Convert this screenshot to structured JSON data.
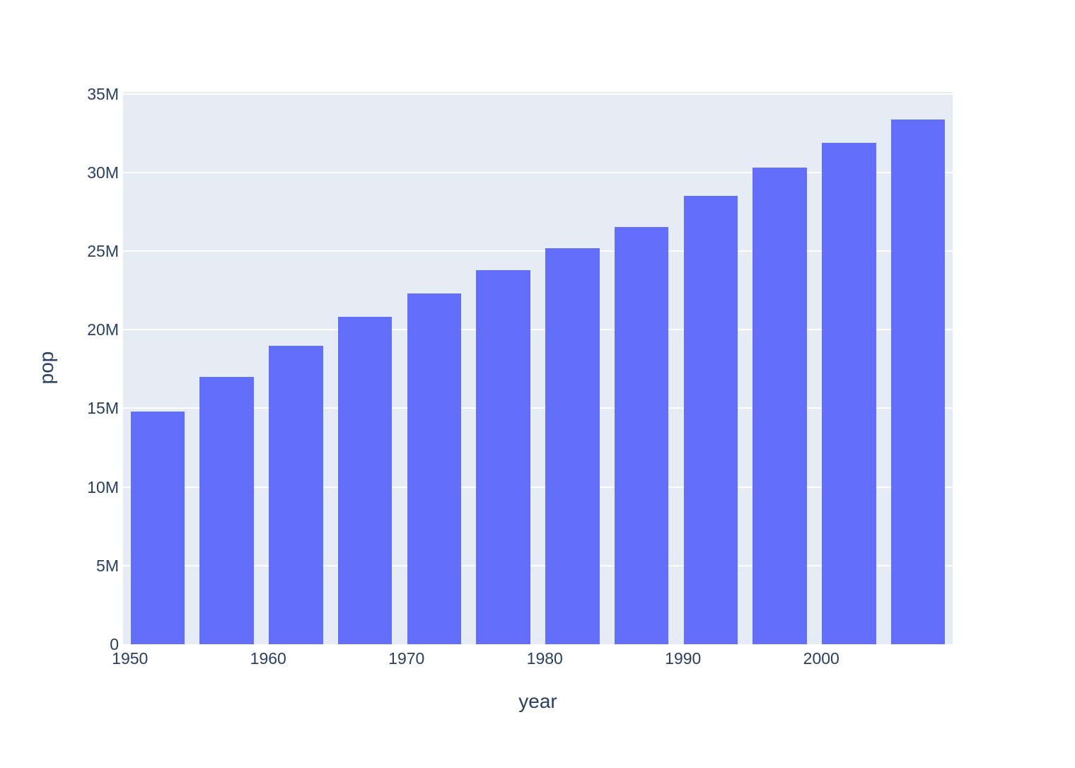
{
  "chart_data": {
    "type": "bar",
    "title": "",
    "xlabel": "year",
    "ylabel": "pop",
    "x": [
      1952,
      1957,
      1962,
      1967,
      1972,
      1977,
      1982,
      1987,
      1992,
      1997,
      2002,
      2007
    ],
    "values": [
      14785584,
      17010154,
      18985849,
      20819767,
      22284500,
      23796400,
      25201900,
      26549700,
      28523502,
      30305843,
      31902268,
      33390141
    ],
    "series_name": "pop",
    "xlim": [
      1949.5,
      2009.5
    ],
    "ylim": [
      0,
      35120000
    ],
    "bar_width_years": 3.93,
    "x_ticks": [
      {
        "value": 1950,
        "label": "1950"
      },
      {
        "value": 1960,
        "label": "1960"
      },
      {
        "value": 1970,
        "label": "1970"
      },
      {
        "value": 1980,
        "label": "1980"
      },
      {
        "value": 1990,
        "label": "1990"
      },
      {
        "value": 2000,
        "label": "2000"
      }
    ],
    "y_ticks": [
      {
        "value": 0,
        "label": "0"
      },
      {
        "value": 5000000,
        "label": "5M"
      },
      {
        "value": 10000000,
        "label": "10M"
      },
      {
        "value": 15000000,
        "label": "15M"
      },
      {
        "value": 20000000,
        "label": "20M"
      },
      {
        "value": 25000000,
        "label": "25M"
      },
      {
        "value": 30000000,
        "label": "30M"
      },
      {
        "value": 35000000,
        "label": "35M"
      }
    ],
    "grid": true,
    "legend": "none",
    "colors": {
      "bar": "#636EFA",
      "plot_background": "#E5ECF6",
      "gridline": "#FFFFFF",
      "font": "#2A3F5F",
      "page_background": "#FFFFFF"
    }
  }
}
